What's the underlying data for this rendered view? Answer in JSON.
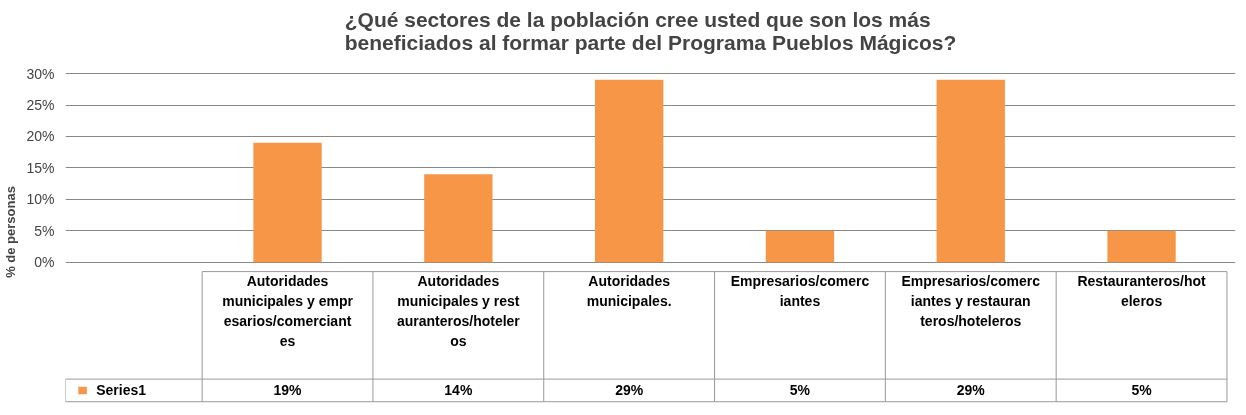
{
  "chart_data": {
    "type": "bar",
    "title": "¿Qué sectores de la población cree usted que son los más\nbeneficiados al formar parte del Programa Pueblos Mágicos?",
    "ylabel": "% de personas",
    "categories": [
      "Autoridades municipales y empresarios/comerciantes",
      "Autoridades municipales y restauranteros/hoteleros",
      "Autoridades municipales.",
      "Empresarios/comerciantes",
      "Empresarios/comerciantes y restauranteros/hoteleros",
      "Restauranteros/hoteleros"
    ],
    "series": [
      {
        "name": "Series1",
        "color": "#f79646",
        "values": [
          19,
          14,
          29,
          5,
          29,
          5
        ],
        "value_labels": [
          "19%",
          "14%",
          "29%",
          "5%",
          "29%",
          "5%"
        ]
      }
    ],
    "ylim": [
      0,
      30
    ],
    "yticks": [
      {
        "value": 0,
        "label": "0%"
      },
      {
        "value": 5,
        "label": "5%"
      },
      {
        "value": 10,
        "label": "10%"
      },
      {
        "value": 15,
        "label": "15%"
      },
      {
        "value": 20,
        "label": "20%"
      },
      {
        "value": 25,
        "label": "25%"
      },
      {
        "value": 30,
        "label": "30%"
      }
    ],
    "grid": "y",
    "legend": "bottom"
  }
}
